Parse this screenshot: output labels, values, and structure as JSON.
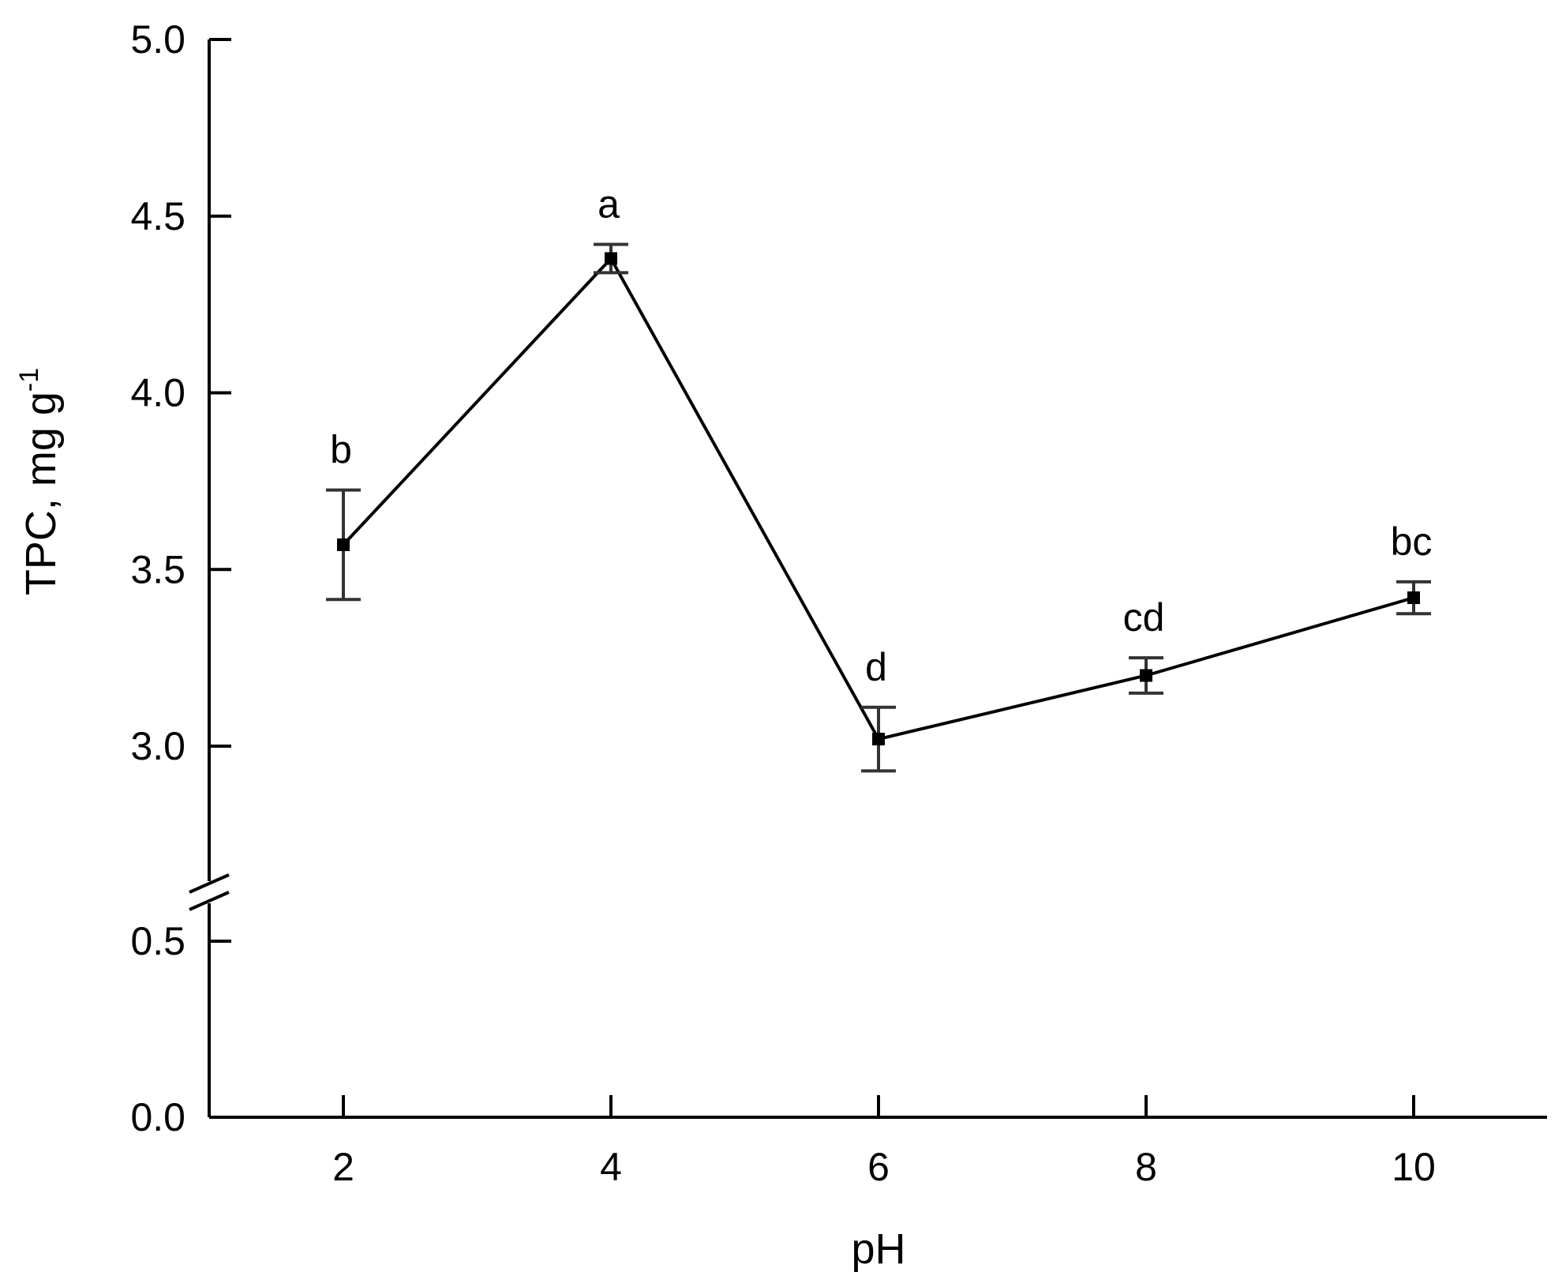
{
  "chart_data": {
    "type": "line",
    "x": [
      2,
      4,
      6,
      8,
      10
    ],
    "series": [
      {
        "values": [
          3.57,
          4.38,
          3.02,
          3.2,
          3.42
        ],
        "errors": [
          0.155,
          0.04,
          0.09,
          0.05,
          0.045
        ],
        "letters": [
          "b",
          "a",
          "d",
          "cd",
          "bc"
        ]
      }
    ],
    "xlabel": "pH",
    "ylabel_main": "TPC, mg g",
    "ylabel_sup": "-1",
    "x_ticks": [
      2,
      4,
      6,
      8,
      10
    ],
    "x_tick_labels": [
      "2",
      "4",
      "6",
      "8",
      "10"
    ],
    "y_ticks_lower": [
      0.0,
      0.5
    ],
    "y_tick_labels_lower": [
      "0.0",
      "0.5"
    ],
    "y_ticks_upper": [
      3.0,
      3.5,
      4.0,
      4.5,
      5.0
    ],
    "y_tick_labels_upper": [
      "3.0",
      "3.5",
      "4.0",
      "4.5",
      "5.0"
    ],
    "xlim": [
      1,
      11
    ],
    "ylim_lower": [
      0,
      0.6
    ],
    "ylim_upper": [
      2.6,
      5.0
    ],
    "axis_break": true,
    "grid": false,
    "legend": "none",
    "colors": {
      "line": "#000000",
      "errorbar": "#333333",
      "axis": "#000000"
    }
  }
}
